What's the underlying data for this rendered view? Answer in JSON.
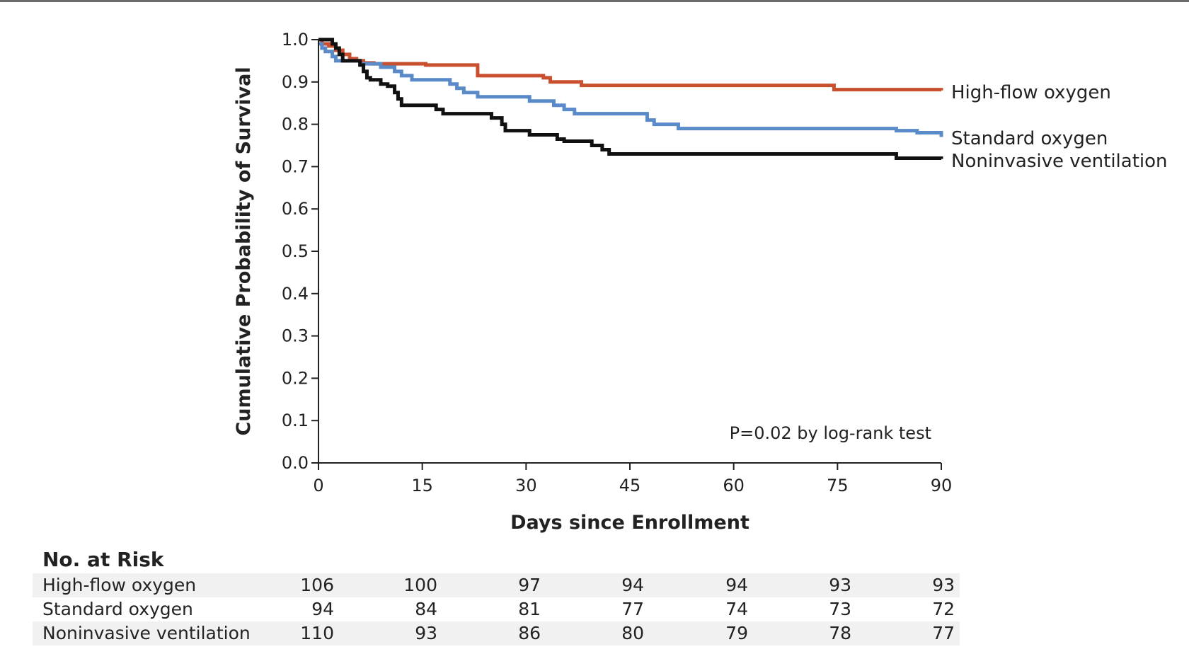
{
  "chart_data": {
    "type": "line",
    "step": true,
    "title": "",
    "xlabel": "Days since Enrollment",
    "ylabel": "Cumulative Probability of Survival",
    "xlim": [
      0,
      90
    ],
    "ylim": [
      0,
      1.0
    ],
    "xticks": [
      0,
      15,
      30,
      45,
      60,
      75,
      90
    ],
    "xtick_labels": [
      "0",
      "15",
      "30",
      "45",
      "60",
      "75",
      "90"
    ],
    "yticks": [
      0.0,
      0.1,
      0.2,
      0.3,
      0.4,
      0.5,
      0.6,
      0.7,
      0.8,
      0.9,
      1.0
    ],
    "ytick_labels": [
      "0.0",
      "0.1",
      "0.2",
      "0.3",
      "0.4",
      "0.5",
      "0.6",
      "0.7",
      "0.8",
      "0.9",
      "1.0"
    ],
    "annotation": "P=0.02 by log-rank test",
    "legend_position": "right, at line ends",
    "series": [
      {
        "name": "High-flow oxygen",
        "color": "#c8502f",
        "points": [
          [
            0,
            1.0
          ],
          [
            0.5,
            0.99
          ],
          [
            1.5,
            0.985
          ],
          [
            2.5,
            0.975
          ],
          [
            3.5,
            0.965
          ],
          [
            4.5,
            0.955
          ],
          [
            5.5,
            0.95
          ],
          [
            6.5,
            0.945
          ],
          [
            8,
            0.943
          ],
          [
            15.5,
            0.94
          ],
          [
            23,
            0.915
          ],
          [
            32.5,
            0.91
          ],
          [
            33.5,
            0.9
          ],
          [
            38,
            0.892
          ],
          [
            74.5,
            0.882
          ],
          [
            90,
            0.88
          ]
        ]
      },
      {
        "name": "Standard oxygen",
        "color": "#5a8ac8",
        "points": [
          [
            0,
            0.99
          ],
          [
            0.5,
            0.98
          ],
          [
            1,
            0.972
          ],
          [
            2,
            0.96
          ],
          [
            2.5,
            0.95
          ],
          [
            6,
            0.943
          ],
          [
            9,
            0.935
          ],
          [
            11,
            0.925
          ],
          [
            12,
            0.915
          ],
          [
            13.5,
            0.905
          ],
          [
            19,
            0.895
          ],
          [
            20,
            0.885
          ],
          [
            21,
            0.875
          ],
          [
            23,
            0.865
          ],
          [
            30.5,
            0.855
          ],
          [
            34,
            0.845
          ],
          [
            35.5,
            0.835
          ],
          [
            37,
            0.825
          ],
          [
            47.5,
            0.81
          ],
          [
            48.5,
            0.8
          ],
          [
            52,
            0.79
          ],
          [
            83.5,
            0.785
          ],
          [
            86.5,
            0.78
          ],
          [
            90,
            0.77
          ]
        ]
      },
      {
        "name": "Noninvasive ventilation",
        "color": "#111111",
        "points": [
          [
            0,
            1.0
          ],
          [
            2,
            0.99
          ],
          [
            2.5,
            0.98
          ],
          [
            3,
            0.965
          ],
          [
            3.5,
            0.95
          ],
          [
            6,
            0.94
          ],
          [
            6.5,
            0.925
          ],
          [
            7,
            0.91
          ],
          [
            7.5,
            0.905
          ],
          [
            9,
            0.895
          ],
          [
            10,
            0.89
          ],
          [
            11,
            0.875
          ],
          [
            11.5,
            0.86
          ],
          [
            12,
            0.845
          ],
          [
            17,
            0.835
          ],
          [
            18,
            0.825
          ],
          [
            25,
            0.815
          ],
          [
            26.5,
            0.8
          ],
          [
            27,
            0.785
          ],
          [
            30.5,
            0.775
          ],
          [
            34.5,
            0.765
          ],
          [
            35.5,
            0.76
          ],
          [
            39.5,
            0.75
          ],
          [
            41,
            0.74
          ],
          [
            42,
            0.73
          ],
          [
            83.5,
            0.72
          ],
          [
            90,
            0.718
          ]
        ]
      }
    ]
  },
  "risk_table": {
    "title": "No. at Risk",
    "time_points": [
      0,
      15,
      30,
      45,
      60,
      75,
      90
    ],
    "rows": [
      {
        "label": "High-flow oxygen",
        "values": [
          "106",
          "100",
          "97",
          "94",
          "94",
          "93",
          "93"
        ]
      },
      {
        "label": "Standard oxygen",
        "values": [
          "94",
          "84",
          "81",
          "77",
          "74",
          "73",
          "72"
        ]
      },
      {
        "label": "Noninvasive ventilation",
        "values": [
          "110",
          "93",
          "86",
          "80",
          "79",
          "78",
          "77"
        ]
      }
    ]
  }
}
